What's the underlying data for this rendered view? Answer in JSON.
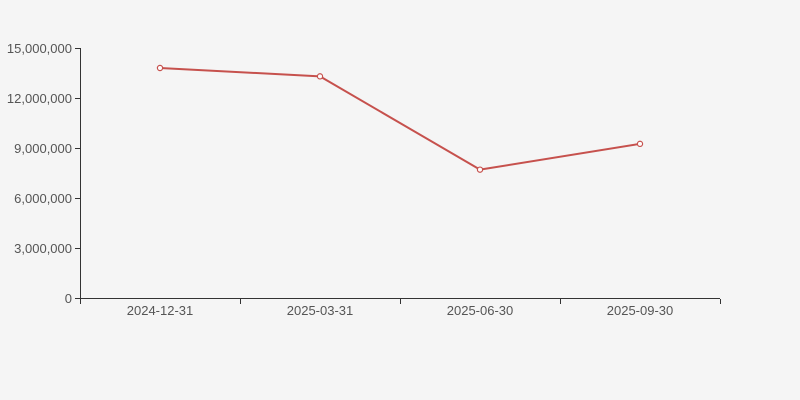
{
  "page": {
    "background_color": "#f5f5f5"
  },
  "chart_data": {
    "type": "line",
    "title": "",
    "xlabel": "",
    "ylabel": "",
    "categories": [
      "2024-12-31",
      "2025-03-31",
      "2025-06-30",
      "2025-09-30"
    ],
    "values": [
      13800000,
      13300000,
      7700000,
      9250000
    ],
    "ylim": [
      0,
      15000000
    ],
    "y_interval": 3000000,
    "y_tick_labels": [
      "0",
      "3,000,000",
      "6,000,000",
      "9,000,000",
      "12,000,000",
      "15,000,000"
    ],
    "grid": false,
    "legend": false,
    "marker": "hollow-circle",
    "colors": {
      "line": "#c6514d",
      "marker_fill": "#fefefe",
      "axis": "#333333",
      "label": "#555555",
      "background": "#f5f5f5"
    }
  }
}
